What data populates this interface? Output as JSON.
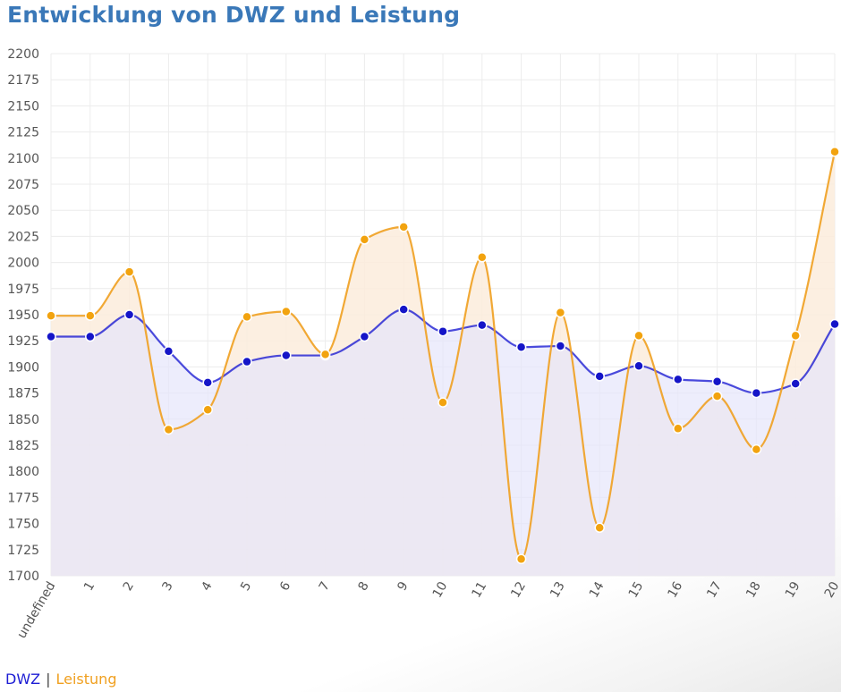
{
  "chart_data": {
    "type": "line",
    "title": "Entwicklung von DWZ und Leistung",
    "categories": [
      "undefined",
      "1",
      "2",
      "3",
      "4",
      "5",
      "6",
      "7",
      "8",
      "9",
      "10",
      "11",
      "12",
      "13",
      "14",
      "15",
      "16",
      "17",
      "18",
      "19",
      "20"
    ],
    "ylim": [
      1700,
      2200
    ],
    "yticks": [
      1700,
      1725,
      1750,
      1775,
      1800,
      1825,
      1850,
      1875,
      1900,
      1925,
      1950,
      1975,
      2000,
      2025,
      2050,
      2075,
      2100,
      2125,
      2150,
      2175,
      2200
    ],
    "series": [
      {
        "name": "DWZ",
        "color": "#1010d0",
        "fill": "#e6e6fb",
        "values": [
          1929,
          1929,
          1950,
          1915,
          1885,
          1905,
          1911,
          1911,
          1929,
          1955,
          1934,
          1940,
          1919,
          1920,
          1891,
          1901,
          1888,
          1886,
          1875,
          1884,
          1941
        ]
      },
      {
        "name": "Leistung",
        "color": "#f0a020",
        "fill": "#fcecdc",
        "values": [
          1949,
          1949,
          1991,
          1840,
          1859,
          1948,
          1953,
          1912,
          2022,
          2034,
          1866,
          2005,
          1716,
          1952,
          1746,
          1930,
          1841,
          1872,
          1821,
          1930,
          2106
        ]
      }
    ],
    "legend": {
      "dwz": "DWZ",
      "separator": "|",
      "leistung": "Leistung"
    }
  }
}
